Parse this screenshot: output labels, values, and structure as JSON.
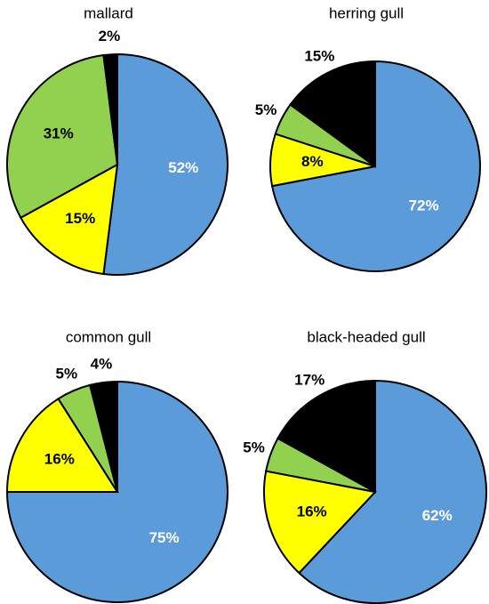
{
  "chart_data": [
    {
      "type": "pie",
      "title": "mallard",
      "values": [
        52,
        15,
        31,
        2
      ],
      "value_labels": [
        "52%",
        "15%",
        "31%",
        "2%"
      ],
      "colors": [
        "#5b9bd9",
        "#ffff00",
        "#92d050",
        "#000000"
      ]
    },
    {
      "type": "pie",
      "title": "herring gull",
      "values": [
        72,
        8,
        5,
        15
      ],
      "value_labels": [
        "72%",
        "8%",
        "5%",
        "15%"
      ],
      "colors": [
        "#5b9bd9",
        "#ffff00",
        "#92d050",
        "#000000"
      ]
    },
    {
      "type": "pie",
      "title": "common gull",
      "values": [
        75,
        16,
        5,
        4
      ],
      "value_labels": [
        "75%",
        "16%",
        "5%",
        "4%"
      ],
      "colors": [
        "#5b9bd9",
        "#ffff00",
        "#92d050",
        "#000000"
      ]
    },
    {
      "type": "pie",
      "title": "black-headed gull",
      "values": [
        62,
        16,
        5,
        17
      ],
      "value_labels": [
        "62%",
        "16%",
        "5%",
        "17%"
      ],
      "colors": [
        "#5b9bd9",
        "#ffff00",
        "#92d050",
        "#000000"
      ]
    }
  ]
}
